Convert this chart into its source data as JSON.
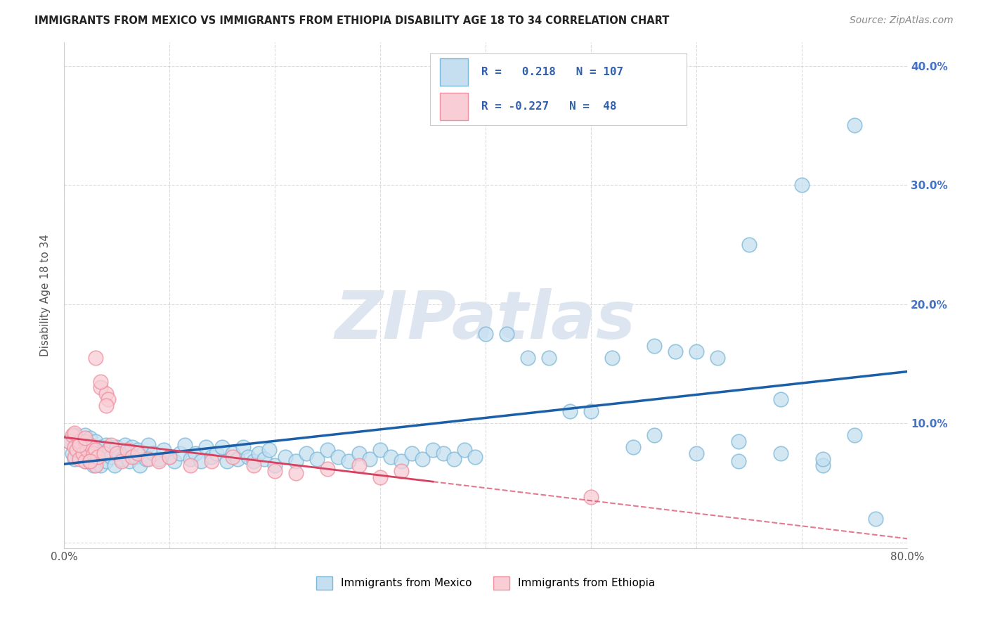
{
  "title": "IMMIGRANTS FROM MEXICO VS IMMIGRANTS FROM ETHIOPIA DISABILITY AGE 18 TO 34 CORRELATION CHART",
  "source": "Source: ZipAtlas.com",
  "ylabel": "Disability Age 18 to 34",
  "r_mexico": 0.218,
  "n_mexico": 107,
  "r_ethiopia": -0.227,
  "n_ethiopia": 48,
  "xlim": [
    0.0,
    0.8
  ],
  "ylim": [
    -0.005,
    0.42
  ],
  "xticks": [
    0.0,
    0.1,
    0.2,
    0.3,
    0.4,
    0.5,
    0.6,
    0.7,
    0.8
  ],
  "yticks_right": [
    0.0,
    0.1,
    0.2,
    0.3,
    0.4
  ],
  "ytick_labels_right": [
    "",
    "10.0%",
    "20.0%",
    "30.0%",
    "40.0%"
  ],
  "background_color": "#ffffff",
  "grid_color": "#cccccc",
  "blue_edge_color": "#7ab8d9",
  "pink_edge_color": "#f090a0",
  "blue_fill_color": "#c5dff0",
  "pink_fill_color": "#f8cdd5",
  "blue_line_color": "#1a5fa8",
  "pink_line_color": "#d94060",
  "watermark": "ZIPatlas",
  "watermark_color": "#dde5f0",
  "mexico_x": [
    0.005,
    0.008,
    0.01,
    0.01,
    0.012,
    0.015,
    0.015,
    0.018,
    0.02,
    0.02,
    0.022,
    0.022,
    0.025,
    0.025,
    0.028,
    0.03,
    0.03,
    0.032,
    0.035,
    0.035,
    0.038,
    0.04,
    0.04,
    0.042,
    0.045,
    0.048,
    0.05,
    0.052,
    0.055,
    0.058,
    0.06,
    0.062,
    0.065,
    0.068,
    0.07,
    0.072,
    0.075,
    0.078,
    0.08,
    0.085,
    0.09,
    0.095,
    0.1,
    0.105,
    0.11,
    0.115,
    0.12,
    0.125,
    0.13,
    0.135,
    0.14,
    0.145,
    0.15,
    0.155,
    0.16,
    0.165,
    0.17,
    0.175,
    0.18,
    0.185,
    0.19,
    0.195,
    0.2,
    0.21,
    0.22,
    0.23,
    0.24,
    0.25,
    0.26,
    0.27,
    0.28,
    0.29,
    0.3,
    0.31,
    0.32,
    0.33,
    0.34,
    0.35,
    0.36,
    0.37,
    0.38,
    0.39,
    0.4,
    0.42,
    0.44,
    0.46,
    0.48,
    0.5,
    0.52,
    0.54,
    0.56,
    0.58,
    0.6,
    0.62,
    0.64,
    0.65,
    0.68,
    0.7,
    0.72,
    0.75,
    0.56,
    0.6,
    0.64,
    0.68,
    0.72,
    0.75,
    0.77
  ],
  "mexico_y": [
    0.085,
    0.075,
    0.09,
    0.07,
    0.08,
    0.085,
    0.072,
    0.078,
    0.09,
    0.068,
    0.075,
    0.082,
    0.07,
    0.088,
    0.065,
    0.078,
    0.085,
    0.072,
    0.08,
    0.065,
    0.075,
    0.082,
    0.068,
    0.078,
    0.072,
    0.065,
    0.08,
    0.075,
    0.07,
    0.082,
    0.075,
    0.068,
    0.08,
    0.072,
    0.078,
    0.065,
    0.075,
    0.07,
    0.082,
    0.075,
    0.07,
    0.078,
    0.072,
    0.068,
    0.075,
    0.082,
    0.07,
    0.075,
    0.068,
    0.08,
    0.072,
    0.075,
    0.08,
    0.068,
    0.075,
    0.07,
    0.08,
    0.072,
    0.068,
    0.075,
    0.07,
    0.078,
    0.065,
    0.072,
    0.068,
    0.075,
    0.07,
    0.078,
    0.072,
    0.068,
    0.075,
    0.07,
    0.078,
    0.072,
    0.068,
    0.075,
    0.07,
    0.078,
    0.075,
    0.07,
    0.078,
    0.072,
    0.175,
    0.175,
    0.155,
    0.155,
    0.11,
    0.11,
    0.155,
    0.08,
    0.165,
    0.16,
    0.16,
    0.155,
    0.085,
    0.25,
    0.12,
    0.3,
    0.065,
    0.35,
    0.09,
    0.075,
    0.068,
    0.075,
    0.07,
    0.09,
    0.02
  ],
  "ethiopia_x": [
    0.005,
    0.008,
    0.01,
    0.01,
    0.012,
    0.015,
    0.015,
    0.018,
    0.02,
    0.02,
    0.022,
    0.025,
    0.025,
    0.028,
    0.03,
    0.03,
    0.032,
    0.035,
    0.038,
    0.04,
    0.042,
    0.045,
    0.05,
    0.055,
    0.06,
    0.065,
    0.07,
    0.08,
    0.09,
    0.1,
    0.12,
    0.14,
    0.16,
    0.18,
    0.2,
    0.22,
    0.25,
    0.28,
    0.3,
    0.32,
    0.01,
    0.015,
    0.02,
    0.025,
    0.03,
    0.035,
    0.04,
    0.5
  ],
  "ethiopia_y": [
    0.085,
    0.09,
    0.08,
    0.072,
    0.078,
    0.085,
    0.07,
    0.075,
    0.085,
    0.068,
    0.078,
    0.082,
    0.068,
    0.075,
    0.078,
    0.065,
    0.072,
    0.13,
    0.075,
    0.125,
    0.12,
    0.082,
    0.075,
    0.068,
    0.078,
    0.072,
    0.075,
    0.07,
    0.068,
    0.072,
    0.065,
    0.068,
    0.072,
    0.065,
    0.06,
    0.058,
    0.062,
    0.065,
    0.055,
    0.06,
    0.092,
    0.082,
    0.088,
    0.068,
    0.155,
    0.135,
    0.115,
    0.038
  ]
}
